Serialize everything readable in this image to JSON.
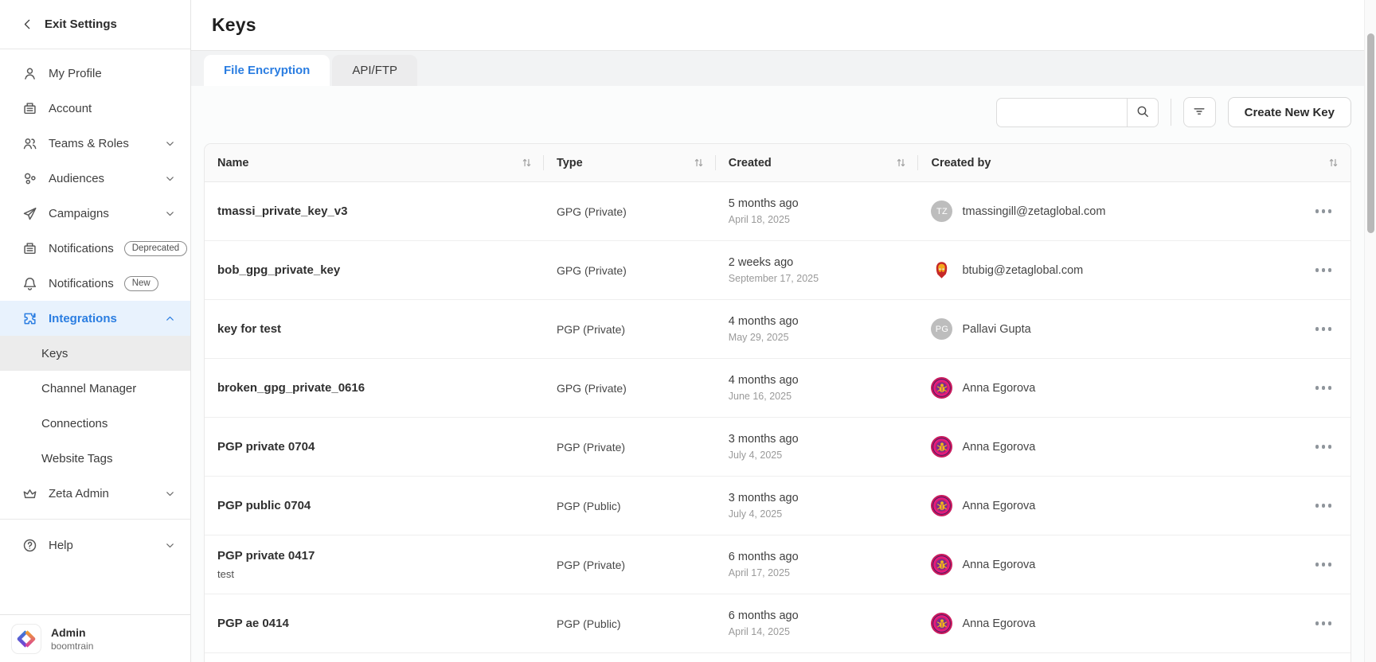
{
  "colors": {
    "accent": "#2a7de1",
    "active_item_bg": "#e8f2fd",
    "selected_subitem_bg": "#ececec"
  },
  "sidebar": {
    "exit_label": "Exit Settings",
    "items": [
      {
        "label": "My Profile",
        "icon": "user"
      },
      {
        "label": "Account",
        "icon": "account"
      },
      {
        "label": "Teams & Roles",
        "icon": "team",
        "chevron": "down"
      },
      {
        "label": "Audiences",
        "icon": "audiences",
        "chevron": "down"
      },
      {
        "label": "Campaigns",
        "icon": "campaigns",
        "chevron": "down"
      },
      {
        "label": "Notifications",
        "icon": "account",
        "badge": "Deprecated"
      },
      {
        "label": "Notifications",
        "icon": "bell",
        "badge": "New"
      },
      {
        "label": "Integrations",
        "icon": "puzzle",
        "chevron": "up",
        "active": true
      }
    ],
    "sub_items": [
      {
        "label": "Keys",
        "active": true
      },
      {
        "label": "Channel Manager"
      },
      {
        "label": "Connections"
      },
      {
        "label": "Website Tags"
      }
    ],
    "bottom_items": [
      {
        "label": "Zeta Admin",
        "icon": "crown",
        "chevron": "down"
      },
      {
        "label": "Help",
        "icon": "help",
        "chevron": "down",
        "divider_before": true
      }
    ],
    "account": {
      "name": "Admin",
      "org": "boomtrain"
    }
  },
  "header": {
    "title": "Keys"
  },
  "tabs": [
    {
      "label": "File Encryption",
      "active": true
    },
    {
      "label": "API/FTP",
      "active": false
    }
  ],
  "toolbar": {
    "search_value": "",
    "search_placeholder": "",
    "search_icon": "search",
    "filter_icon": "filter",
    "create_button": "Create New Key"
  },
  "table": {
    "columns": [
      "Name",
      "Type",
      "Created",
      "Created by"
    ],
    "rows": [
      {
        "name": "tmassi_private_key_v3",
        "type": "GPG (Private)",
        "created_rel": "5 months ago",
        "created_date": "April 18, 2025",
        "creator": "tmassingill@zetaglobal.com",
        "avatar_kind": "initials",
        "avatar": "TZ"
      },
      {
        "name": "bob_gpg_private_key",
        "type": "GPG (Private)",
        "created_rel": "2 weeks ago",
        "created_date": "September 17, 2025",
        "creator": "btubig@zetaglobal.com",
        "avatar_kind": "ironman",
        "avatar": "iron-man"
      },
      {
        "name": "key for test",
        "type": "PGP (Private)",
        "created_rel": "4 months ago",
        "created_date": "May 29, 2025",
        "creator": "Pallavi Gupta",
        "avatar_kind": "initials",
        "avatar": "PG"
      },
      {
        "name": "broken_gpg_private_0616",
        "type": "GPG (Private)",
        "created_rel": "4 months ago",
        "created_date": "June 16, 2025",
        "creator": "Anna Egorova",
        "avatar_kind": "bug",
        "avatar": "purple-bug-badge"
      },
      {
        "name": "PGP private 0704",
        "type": "PGP (Private)",
        "created_rel": "3 months ago",
        "created_date": "July 4, 2025",
        "creator": "Anna Egorova",
        "avatar_kind": "bug",
        "avatar": "purple-bug-badge"
      },
      {
        "name": "PGP public 0704",
        "type": "PGP (Public)",
        "created_rel": "3 months ago",
        "created_date": "July 4, 2025",
        "creator": "Anna Egorova",
        "avatar_kind": "bug",
        "avatar": "purple-bug-badge"
      },
      {
        "name": "PGP private 0417",
        "subtitle": "test",
        "type": "PGP (Private)",
        "created_rel": "6 months ago",
        "created_date": "April 17, 2025",
        "creator": "Anna Egorova",
        "avatar_kind": "bug",
        "avatar": "purple-bug-badge"
      },
      {
        "name": "PGP ae 0414",
        "type": "PGP (Public)",
        "created_rel": "6 months ago",
        "created_date": "April 14, 2025",
        "creator": "Anna Egorova",
        "avatar_kind": "bug",
        "avatar": "purple-bug-badge"
      }
    ]
  }
}
